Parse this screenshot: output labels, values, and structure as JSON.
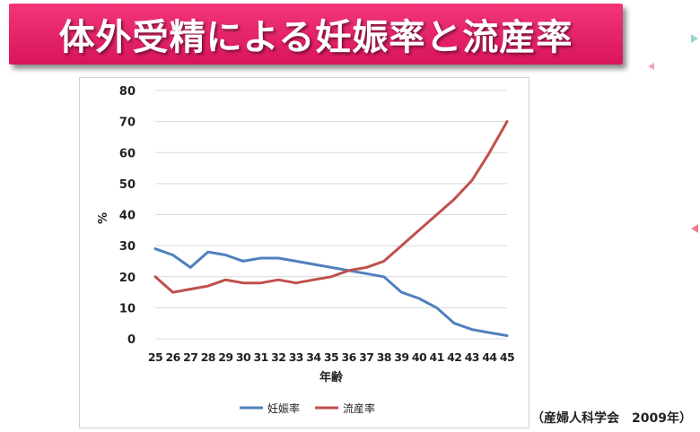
{
  "banner": {
    "title": "体外受精による妊娠率と流産率"
  },
  "source": "（産婦人科学会　2009年）",
  "chart_data": {
    "type": "line",
    "title": "",
    "xlabel": "年齢",
    "ylabel": "%",
    "ylim": [
      0,
      80
    ],
    "yticks": [
      0,
      10,
      20,
      30,
      40,
      50,
      60,
      70,
      80
    ],
    "grid": true,
    "legend_position": "bottom",
    "x": [
      25,
      26,
      27,
      28,
      29,
      30,
      31,
      32,
      33,
      34,
      35,
      36,
      37,
      38,
      39,
      40,
      41,
      42,
      43,
      44,
      45
    ],
    "series": [
      {
        "name": "妊娠率",
        "color": "#4f81bd",
        "values": [
          29,
          27,
          23,
          28,
          27,
          25,
          26,
          26,
          25,
          24,
          23,
          22,
          21,
          20,
          15,
          13,
          10,
          5,
          3,
          2,
          1
        ]
      },
      {
        "name": "流産率",
        "color": "#c0504d",
        "values": [
          20,
          15,
          16,
          17,
          19,
          18,
          18,
          19,
          18,
          19,
          20,
          22,
          23,
          25,
          30,
          35,
          40,
          45,
          51,
          60,
          70
        ]
      }
    ]
  }
}
